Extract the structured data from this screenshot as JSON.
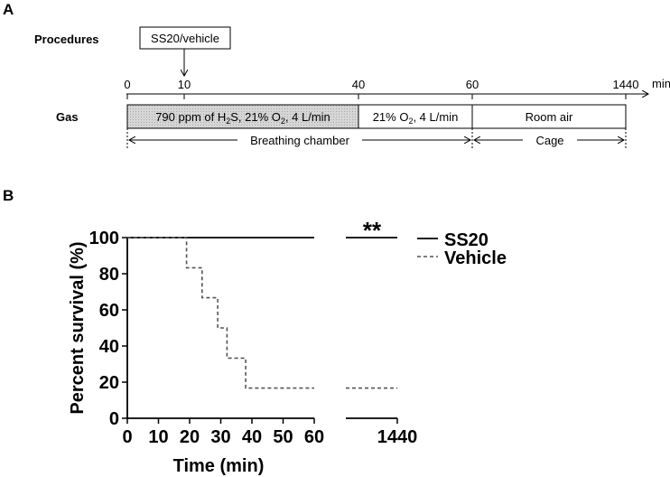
{
  "panel_a": {
    "label": "A",
    "procedures_label": "Procedures",
    "procedure_box": "SS20/vehicle",
    "gas_label": "Gas",
    "timeline_unit": "min",
    "ticks": [
      "0",
      "10",
      "40",
      "60",
      "1440"
    ],
    "phase_h2s": {
      "pre": "790 ppm of H",
      "sub1": "2",
      "mid": "S, 21% O",
      "sub2": "2",
      "post": ", 4 L/min"
    },
    "phase_o2": {
      "pre": "21% O",
      "sub": "2",
      "post": ", 4 L/min"
    },
    "phase_room": "Room air",
    "breathing_chamber": "Breathing chamber",
    "cage": "Cage"
  },
  "panel_b": {
    "label": "B",
    "significance": "**"
  },
  "colors": {
    "hatch_fill": "#d9d9d9",
    "line": "#000000",
    "vehicle": "#555555"
  },
  "chart_data": {
    "type": "line",
    "xlabel": "Time (min)",
    "ylabel": "Percent survival (%)",
    "x_ticks": [
      "0",
      "10",
      "20",
      "30",
      "40",
      "50",
      "60"
    ],
    "x_break_tick": "1440",
    "y_ticks": [
      "0",
      "20",
      "40",
      "60",
      "80",
      "100"
    ],
    "xlim": [
      0,
      60
    ],
    "ylim": [
      0,
      100
    ],
    "legend_position": "right",
    "series": [
      {
        "name": "SS20",
        "style": "solid",
        "points": [
          [
            0,
            100
          ],
          [
            60,
            100
          ]
        ],
        "tail": [
          1440,
          100
        ]
      },
      {
        "name": "Vehicle",
        "style": "dashed",
        "points": [
          [
            0,
            100
          ],
          [
            19,
            100
          ],
          [
            19,
            83.3
          ],
          [
            24,
            83.3
          ],
          [
            24,
            66.7
          ],
          [
            29,
            66.7
          ],
          [
            29,
            50
          ],
          [
            32,
            50
          ],
          [
            32,
            33.3
          ],
          [
            38,
            33.3
          ],
          [
            38,
            16.7
          ],
          [
            60,
            16.7
          ]
        ],
        "tail": [
          1440,
          16.7
        ]
      }
    ]
  }
}
